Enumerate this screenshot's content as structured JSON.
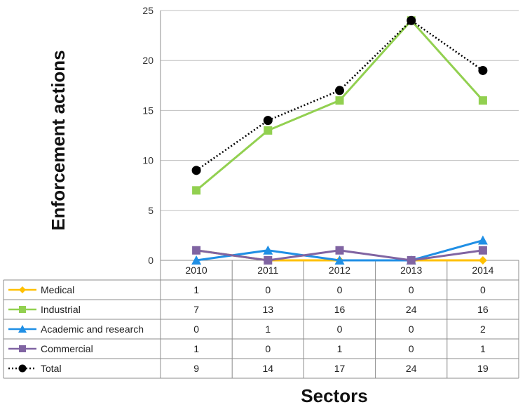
{
  "chart_data": {
    "type": "line",
    "categories": [
      "2010",
      "2011",
      "2012",
      "2013",
      "2014"
    ],
    "ylabel": "Enforcement actions",
    "xlabel": "Sectors",
    "ylim": [
      0,
      25
    ],
    "yticks": [
      "0",
      "5",
      "10",
      "15",
      "20",
      "25"
    ],
    "grid": true,
    "legend": "table-below",
    "series": [
      {
        "name": "Medical",
        "values": [
          1,
          0,
          0,
          0,
          0
        ],
        "color": "#FFC000",
        "marker": "diamond",
        "dash": "solid"
      },
      {
        "name": "Industrial",
        "values": [
          7,
          13,
          16,
          24,
          16
        ],
        "color": "#92D050",
        "marker": "square",
        "dash": "solid"
      },
      {
        "name": "Academic and research",
        "values": [
          0,
          1,
          0,
          0,
          2
        ],
        "color": "#1F8FE5",
        "marker": "triangle",
        "dash": "solid"
      },
      {
        "name": "Commercial",
        "values": [
          1,
          0,
          1,
          0,
          1
        ],
        "color": "#8064A2",
        "marker": "square",
        "dash": "solid"
      },
      {
        "name": "Total",
        "values": [
          9,
          14,
          17,
          24,
          19
        ],
        "color": "#000000",
        "marker": "circle",
        "dash": "dotted"
      }
    ],
    "table_values": [
      [
        "1",
        "0",
        "0",
        "0",
        "0"
      ],
      [
        "7",
        "13",
        "16",
        "24",
        "16"
      ],
      [
        "0",
        "1",
        "0",
        "0",
        "2"
      ],
      [
        "1",
        "0",
        "1",
        "0",
        "1"
      ],
      [
        "9",
        "14",
        "17",
        "24",
        "19"
      ]
    ]
  }
}
